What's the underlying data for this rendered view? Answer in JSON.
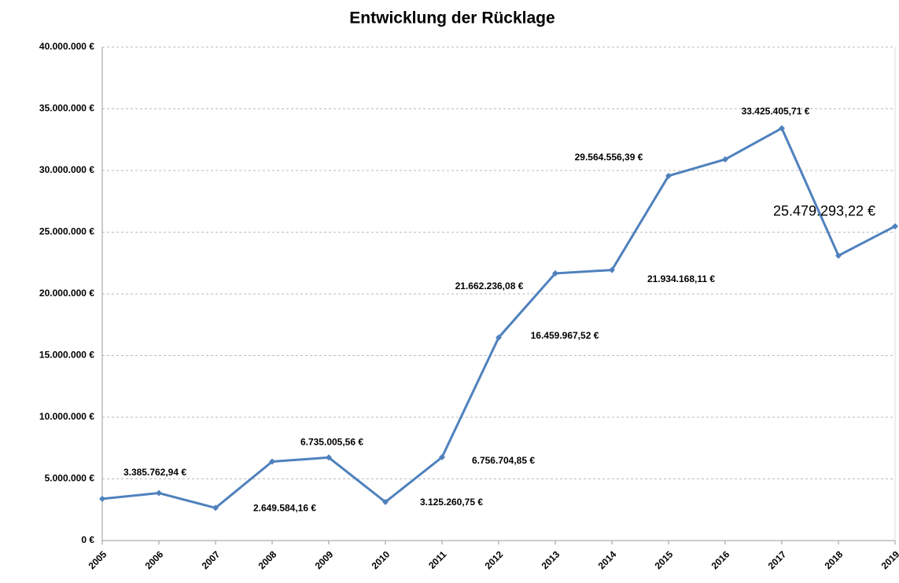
{
  "chart_data": {
    "type": "line",
    "title": "Entwicklung der Rücklage",
    "categories": [
      "2005",
      "2006",
      "2007",
      "2008",
      "2009",
      "2010",
      "2011",
      "2012",
      "2013",
      "2014",
      "2015",
      "2016",
      "2017",
      "2018",
      "2019"
    ],
    "series": [
      {
        "name": "Rücklage",
        "color": "#4f81bd",
        "values": [
          3385762.94,
          3850000,
          2649584.16,
          6400000,
          6735005.56,
          3125260.75,
          6756704.85,
          16459967.52,
          21662236.08,
          21934168.11,
          29564556.39,
          30900000,
          33425405.71,
          23100000,
          25479293.22
        ],
        "value_labels": [
          "3.385.762,94 €",
          null,
          "2.649.584,16 €",
          null,
          "6.735.005,56 €",
          "3.125.260,75 €",
          "6.756.704,85 €",
          "16.459.967,52 €",
          "21.662.236,08 €",
          "21.934.168,11 €",
          "29.564.556,39 €",
          null,
          "33.425.405,71 €",
          null,
          "25.479.293,22 €"
        ]
      }
    ],
    "ylim": [
      0,
      40000000
    ],
    "yticks": [
      {
        "value": 0,
        "label": "0 €"
      },
      {
        "value": 5000000,
        "label": "5.000.000 €"
      },
      {
        "value": 10000000,
        "label": "10.000.000 €"
      },
      {
        "value": 15000000,
        "label": "15.000.000 €"
      },
      {
        "value": 20000000,
        "label": "20.000.000 €"
      },
      {
        "value": 25000000,
        "label": "25.000.000 €"
      },
      {
        "value": 30000000,
        "label": "30.000.000 €"
      },
      {
        "value": 35000000,
        "label": "35.000.000 €"
      },
      {
        "value": 40000000,
        "label": "40.000.000 €"
      }
    ],
    "grid": true
  }
}
